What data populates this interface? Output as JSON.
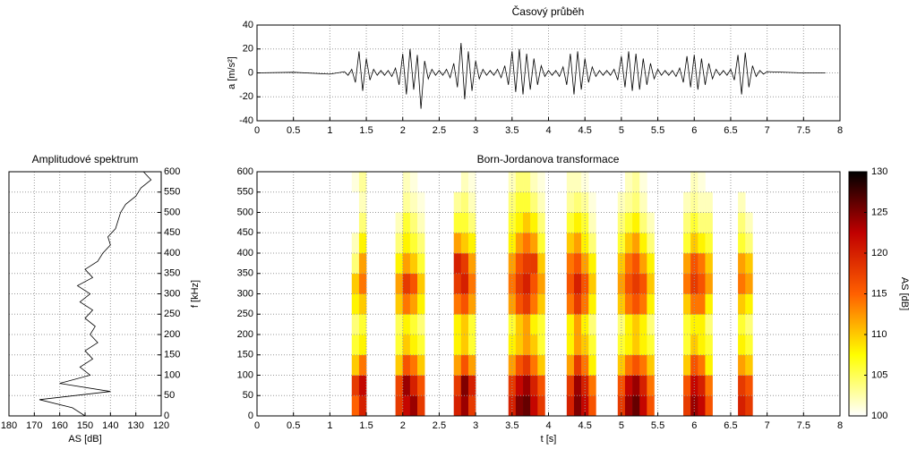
{
  "chart_data": [
    {
      "type": "line",
      "title": "Časový průběh",
      "y_label": "a [m/s²]",
      "color": "#000000",
      "grid": true,
      "xlim": [
        0,
        8
      ],
      "xticks": [
        0,
        0.5,
        1,
        1.5,
        2,
        2.5,
        3,
        3.5,
        4,
        4.5,
        5,
        5.5,
        6,
        6.5,
        7,
        7.5,
        8
      ],
      "ylim": [
        -40,
        40
      ],
      "yticks": [
        -40,
        -20,
        0,
        20,
        40
      ],
      "x": [
        0,
        0.5,
        1,
        1.2,
        1.25,
        1.3,
        1.35,
        1.4,
        1.45,
        1.5,
        1.55,
        1.6,
        1.65,
        1.7,
        1.75,
        1.8,
        1.85,
        1.9,
        1.95,
        2,
        2.05,
        2.1,
        2.15,
        2.2,
        2.25,
        2.3,
        2.35,
        2.4,
        2.45,
        2.5,
        2.55,
        2.6,
        2.65,
        2.7,
        2.75,
        2.8,
        2.85,
        2.9,
        2.95,
        3,
        3.05,
        3.1,
        3.15,
        3.2,
        3.25,
        3.3,
        3.35,
        3.4,
        3.45,
        3.5,
        3.55,
        3.6,
        3.65,
        3.7,
        3.75,
        3.8,
        3.85,
        3.9,
        3.95,
        4,
        4.05,
        4.1,
        4.15,
        4.2,
        4.25,
        4.3,
        4.35,
        4.4,
        4.45,
        4.5,
        4.55,
        4.6,
        4.65,
        4.7,
        4.75,
        4.8,
        4.85,
        4.9,
        4.95,
        5,
        5.05,
        5.1,
        5.15,
        5.2,
        5.25,
        5.3,
        5.35,
        5.4,
        5.45,
        5.5,
        5.55,
        5.6,
        5.65,
        5.7,
        5.75,
        5.8,
        5.85,
        5.9,
        5.95,
        6,
        6.05,
        6.1,
        6.15,
        6.2,
        6.25,
        6.3,
        6.35,
        6.4,
        6.45,
        6.5,
        6.55,
        6.6,
        6.65,
        6.7,
        6.75,
        6.8,
        6.85,
        6.9,
        6.95,
        7,
        7.5,
        7.8
      ],
      "values": [
        0,
        0.5,
        -1,
        1,
        -2,
        3,
        -8,
        18,
        -15,
        12,
        -6,
        3,
        -2,
        2,
        -2,
        2,
        -3,
        4,
        -10,
        16,
        -18,
        20,
        -14,
        15,
        -30,
        10,
        -5,
        3,
        -2,
        2,
        -2,
        3,
        -4,
        8,
        -12,
        25,
        -22,
        18,
        -15,
        10,
        -5,
        3,
        -2,
        2,
        -2,
        3,
        -4,
        6,
        -10,
        18,
        -16,
        20,
        -18,
        16,
        -14,
        12,
        -10,
        6,
        -3,
        2,
        -2,
        2,
        -3,
        5,
        -10,
        16,
        -18,
        18,
        -14,
        12,
        -8,
        5,
        -3,
        2,
        -2,
        2,
        -2,
        3,
        -6,
        14,
        -12,
        18,
        -15,
        16,
        -14,
        12,
        -10,
        8,
        -5,
        3,
        -2,
        2,
        -2,
        2,
        -3,
        4,
        -8,
        14,
        -12,
        15,
        -14,
        12,
        -10,
        8,
        -5,
        3,
        -2,
        2,
        -2,
        3,
        -6,
        15,
        -18,
        17,
        -12,
        6,
        -3,
        2,
        -1,
        1,
        0,
        0
      ]
    },
    {
      "type": "line",
      "title": "Amplitudové spektrum",
      "x_label": "AS [dB]",
      "y_label": "f [kHz]",
      "color": "#000000",
      "grid": true,
      "xlim": [
        180,
        120
      ],
      "xticks": [
        180,
        170,
        160,
        150,
        140,
        130,
        120
      ],
      "ylim": [
        0,
        600
      ],
      "yticks": [
        0,
        50,
        100,
        150,
        200,
        250,
        300,
        350,
        400,
        450,
        500,
        550,
        600
      ],
      "y": [
        0,
        20,
        40,
        60,
        80,
        100,
        120,
        140,
        160,
        180,
        200,
        220,
        240,
        260,
        280,
        300,
        320,
        340,
        360,
        380,
        400,
        420,
        440,
        460,
        480,
        500,
        520,
        540,
        560,
        580,
        600
      ],
      "values": [
        150,
        155,
        168,
        140,
        160,
        148,
        152,
        147,
        150,
        145,
        148,
        146,
        150,
        147,
        152,
        148,
        153,
        147,
        150,
        145,
        143,
        140,
        141,
        138,
        137,
        136,
        134,
        130,
        128,
        124,
        127
      ]
    },
    {
      "type": "heatmap",
      "title": "Born-Jordanova transformace",
      "x_label": "t [s]",
      "colorbar_label": "AS [dB]",
      "grid": true,
      "xlim": [
        0,
        8
      ],
      "xticks": [
        0,
        0.5,
        1,
        1.5,
        2,
        2.5,
        3,
        3.5,
        4,
        4.5,
        5,
        5.5,
        6,
        6.5,
        7,
        7.5,
        8
      ],
      "ylim": [
        0,
        600
      ],
      "yticks": [
        0,
        50,
        100,
        150,
        200,
        250,
        300,
        350,
        400,
        450,
        500,
        550,
        600
      ],
      "clim": [
        100,
        130
      ],
      "cticks": [
        100,
        105,
        110,
        115,
        120,
        125,
        130
      ],
      "colormap": [
        "#ffffff",
        "#ffff00",
        "#ff6000",
        "#c00000",
        "#000000"
      ],
      "x": [
        1.35,
        1.45,
        1.95,
        2.05,
        2.15,
        2.25,
        2.75,
        2.85,
        2.95,
        3.5,
        3.6,
        3.7,
        3.8,
        3.9,
        4.3,
        4.4,
        4.5,
        4.6,
        5.0,
        5.1,
        5.2,
        5.3,
        5.4,
        5.9,
        6.0,
        6.1,
        6.2,
        6.65,
        6.75
      ],
      "y": [
        25,
        75,
        125,
        175,
        225,
        275,
        325,
        375,
        425,
        475,
        525,
        575
      ],
      "z": [
        [
          115,
          118,
          110,
          106,
          104,
          108,
          110,
          104,
          102,
          null,
          null,
          101
        ],
        [
          120,
          122,
          114,
          108,
          106,
          110,
          114,
          112,
          108,
          104,
          102,
          103
        ],
        [
          118,
          117,
          110,
          106,
          105,
          110,
          112,
          108,
          104,
          102,
          null,
          null
        ],
        [
          122,
          124,
          116,
          110,
          108,
          114,
          118,
          112,
          108,
          106,
          103,
          102
        ],
        [
          124,
          120,
          114,
          108,
          106,
          112,
          116,
          110,
          106,
          104,
          102,
          101
        ],
        [
          118,
          116,
          110,
          106,
          104,
          108,
          110,
          106,
          104,
          102,
          101,
          null
        ],
        [
          120,
          118,
          112,
          108,
          108,
          114,
          118,
          120,
          112,
          106,
          103,
          null
        ],
        [
          124,
          125,
          116,
          110,
          110,
          116,
          120,
          118,
          110,
          106,
          104,
          102
        ],
        [
          118,
          120,
          112,
          106,
          106,
          112,
          114,
          112,
          108,
          104,
          102,
          101
        ],
        [
          120,
          118,
          112,
          108,
          106,
          112,
          114,
          112,
          108,
          106,
          104,
          102
        ],
        [
          125,
          122,
          116,
          110,
          110,
          116,
          118,
          116,
          112,
          108,
          106,
          104
        ],
        [
          126,
          124,
          118,
          112,
          112,
          118,
          120,
          118,
          114,
          110,
          106,
          104
        ],
        [
          122,
          120,
          114,
          110,
          108,
          114,
          116,
          118,
          112,
          108,
          104,
          102
        ],
        [
          118,
          116,
          110,
          106,
          106,
          110,
          112,
          110,
          106,
          104,
          102,
          101
        ],
        [
          120,
          118,
          112,
          108,
          108,
          114,
          116,
          114,
          110,
          106,
          103,
          102
        ],
        [
          125,
          124,
          118,
          112,
          112,
          118,
          120,
          116,
          112,
          108,
          104,
          102
        ],
        [
          122,
          120,
          114,
          110,
          108,
          114,
          116,
          112,
          108,
          106,
          103,
          101
        ],
        [
          116,
          114,
          108,
          106,
          104,
          108,
          110,
          108,
          104,
          102,
          101,
          null
        ],
        [
          118,
          116,
          110,
          106,
          104,
          110,
          112,
          110,
          106,
          104,
          102,
          null
        ],
        [
          124,
          122,
          114,
          108,
          108,
          114,
          116,
          114,
          110,
          106,
          103,
          102
        ],
        [
          126,
          124,
          116,
          110,
          110,
          116,
          118,
          116,
          112,
          108,
          104,
          103
        ],
        [
          122,
          120,
          114,
          108,
          108,
          114,
          116,
          112,
          108,
          104,
          102,
          101
        ],
        [
          116,
          114,
          110,
          106,
          104,
          108,
          110,
          108,
          104,
          102,
          null,
          null
        ],
        [
          118,
          116,
          110,
          106,
          106,
          110,
          114,
          112,
          106,
          104,
          102,
          null
        ],
        [
          124,
          122,
          116,
          110,
          108,
          114,
          118,
          116,
          110,
          106,
          103,
          102
        ],
        [
          122,
          120,
          114,
          108,
          108,
          114,
          116,
          114,
          108,
          104,
          102,
          101
        ],
        [
          116,
          114,
          108,
          106,
          104,
          108,
          112,
          110,
          106,
          104,
          102,
          null
        ],
        [
          120,
          118,
          112,
          108,
          106,
          110,
          114,
          112,
          106,
          104,
          102,
          null
        ],
        [
          118,
          116,
          110,
          106,
          104,
          108,
          112,
          110,
          104,
          102,
          null,
          null
        ]
      ]
    }
  ]
}
